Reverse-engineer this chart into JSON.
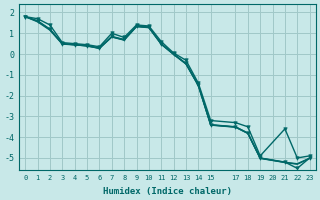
{
  "xlabel": "Humidex (Indice chaleur)",
  "background_color": "#c8e8e8",
  "grid_color": "#a0c8c8",
  "line_color": "#006868",
  "xlim": [
    -0.5,
    23.5
  ],
  "ylim": [
    -5.6,
    2.4
  ],
  "xticks": [
    0,
    1,
    2,
    3,
    4,
    5,
    6,
    7,
    8,
    9,
    10,
    11,
    12,
    13,
    14,
    15,
    17,
    18,
    19,
    20,
    21,
    22,
    23
  ],
  "yticks": [
    -5,
    -4,
    -3,
    -2,
    -1,
    0,
    1,
    2
  ],
  "x_values": [
    0,
    1,
    2,
    3,
    4,
    5,
    6,
    7,
    8,
    9,
    10,
    11,
    12,
    13,
    14,
    15,
    17,
    18,
    19,
    21,
    22,
    23
  ],
  "series_with_markers": [
    [
      1.8,
      1.6,
      1.2,
      0.5,
      0.45,
      0.38,
      0.28,
      0.85,
      0.7,
      1.35,
      1.3,
      0.5,
      0.0,
      -0.45,
      -1.5,
      -3.4,
      -3.5,
      -3.8,
      -5.0,
      -5.2,
      -5.5,
      -5.0
    ],
    [
      1.8,
      1.7,
      1.4,
      0.55,
      0.5,
      0.45,
      0.35,
      1.0,
      0.8,
      1.4,
      1.35,
      0.6,
      0.05,
      -0.3,
      -1.4,
      -3.2,
      -3.3,
      -3.5,
      -4.9,
      -3.6,
      -5.0,
      -4.9
    ]
  ],
  "series_plain": [
    [
      1.8,
      1.55,
      1.15,
      0.48,
      0.44,
      0.4,
      0.27,
      0.82,
      0.67,
      1.32,
      1.27,
      0.47,
      -0.02,
      -0.48,
      -1.52,
      -3.42,
      -3.52,
      -3.82,
      -5.02,
      -5.22,
      -5.3,
      -5.02
    ],
    [
      1.8,
      1.58,
      1.18,
      0.49,
      0.45,
      0.41,
      0.29,
      0.83,
      0.68,
      1.33,
      1.28,
      0.48,
      -0.01,
      -0.47,
      -1.51,
      -3.41,
      -3.51,
      -3.81,
      -5.01,
      -5.21,
      -5.28,
      -5.01
    ]
  ]
}
